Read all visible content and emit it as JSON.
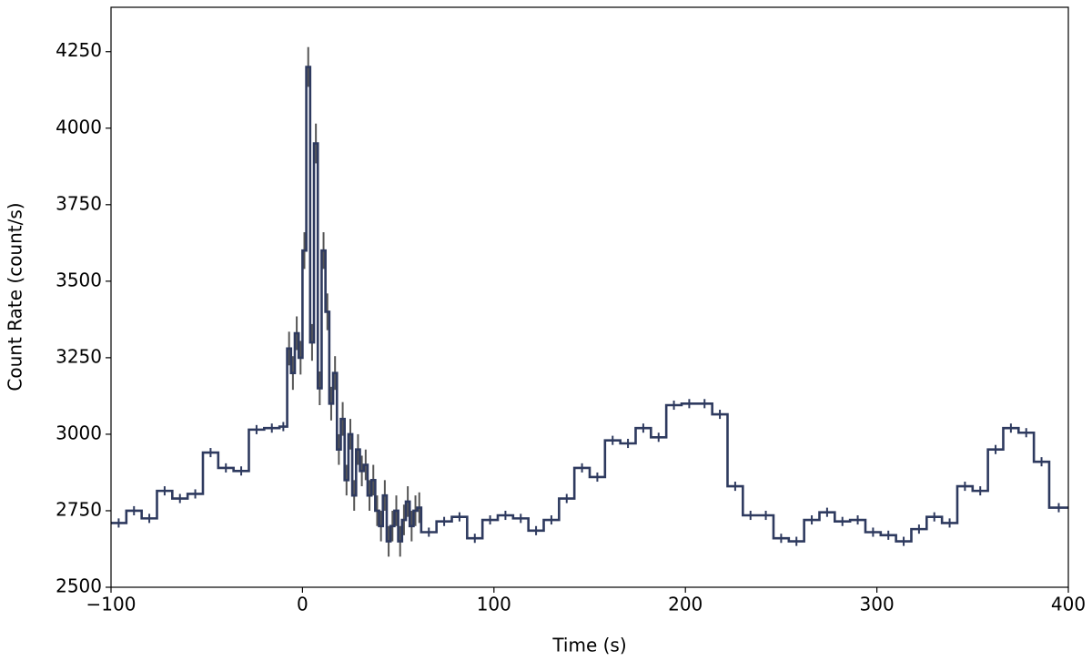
{
  "chart_data": {
    "type": "step",
    "xlabel": "Time (s)",
    "ylabel": "Count Rate (count/s)",
    "xlim": [
      -100,
      400
    ],
    "ylim": [
      2500,
      4395
    ],
    "xticks": [
      {
        "value": -100,
        "label": "−100"
      },
      0,
      100,
      200,
      300,
      400
    ],
    "yticks": [
      2500,
      2750,
      3000,
      3250,
      3500,
      3750,
      4000,
      4250
    ],
    "color": "#2e3a5f",
    "error_color": "#555555",
    "x": [
      -100,
      -92,
      -84,
      -76,
      -68,
      -60,
      -52,
      -44,
      -36,
      -28,
      -20,
      -12,
      -8,
      -6,
      -4,
      -2,
      0,
      2,
      4,
      6,
      8,
      10,
      12,
      14,
      16,
      18,
      20,
      22,
      24,
      26,
      28,
      30,
      32,
      34,
      36,
      38,
      40,
      42,
      44,
      46,
      48,
      50,
      52,
      54,
      56,
      58,
      60,
      62,
      70,
      78,
      86,
      94,
      102,
      110,
      118,
      126,
      134,
      142,
      150,
      158,
      166,
      174,
      182,
      190,
      198,
      206,
      214,
      222,
      230,
      238,
      246,
      254,
      262,
      270,
      278,
      286,
      294,
      302,
      310,
      318,
      326,
      334,
      342,
      350,
      358,
      366,
      374,
      382,
      390
    ],
    "values": [
      2710,
      2750,
      2725,
      2815,
      2790,
      2805,
      2940,
      2890,
      2880,
      3015,
      3020,
      3025,
      3280,
      3200,
      3330,
      3250,
      3600,
      4200,
      3300,
      3950,
      3150,
      3600,
      3400,
      3100,
      3200,
      2950,
      3050,
      2850,
      3000,
      2800,
      2950,
      2880,
      2900,
      2800,
      2850,
      2750,
      2700,
      2800,
      2650,
      2700,
      2750,
      2650,
      2720,
      2780,
      2700,
      2750,
      2760,
      2680,
      2715,
      2730,
      2660,
      2720,
      2735,
      2725,
      2685,
      2720,
      2790,
      2890,
      2860,
      2980,
      2970,
      3020,
      2990,
      3095,
      3100,
      3100,
      3065,
      2830,
      2735,
      2735,
      2660,
      2650,
      2720,
      2745,
      2715,
      2720,
      2680,
      2670,
      2650,
      2690,
      2730,
      2710,
      2830,
      2815,
      2950,
      3020,
      3005,
      2910,
      2760
    ],
    "errors": [
      15,
      15,
      15,
      15,
      15,
      15,
      15,
      15,
      15,
      15,
      15,
      15,
      55,
      55,
      55,
      55,
      60,
      65,
      60,
      65,
      55,
      60,
      60,
      55,
      55,
      50,
      55,
      50,
      50,
      50,
      50,
      50,
      50,
      50,
      50,
      50,
      50,
      50,
      50,
      50,
      50,
      50,
      50,
      50,
      50,
      50,
      50,
      15,
      15,
      15,
      15,
      15,
      15,
      15,
      15,
      15,
      15,
      15,
      15,
      15,
      15,
      15,
      15,
      15,
      15,
      15,
      15,
      15,
      15,
      15,
      15,
      15,
      15,
      15,
      15,
      15,
      15,
      15,
      15,
      15,
      15,
      15,
      15,
      15,
      15,
      15,
      15,
      15,
      15
    ]
  }
}
